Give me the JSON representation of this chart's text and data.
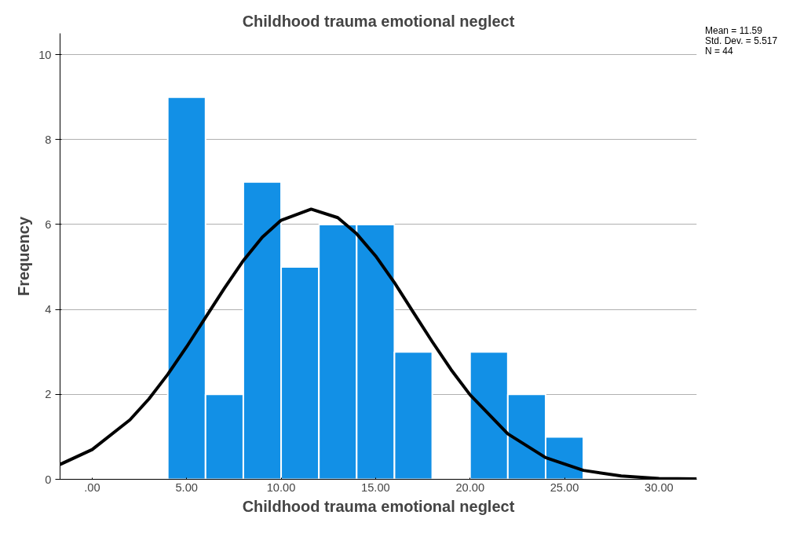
{
  "chart_data": {
    "type": "histogram",
    "title": "Childhood trauma emotional neglect",
    "xlabel": "Childhood trauma emotional neglect",
    "ylabel": "Frequency",
    "bins": [
      4,
      6,
      8,
      10,
      12,
      14,
      16,
      18,
      20,
      22,
      24,
      26
    ],
    "values": [
      9,
      2,
      7,
      5,
      6,
      6,
      3,
      0,
      3,
      2,
      1
    ],
    "color": "#1290e6",
    "series": [
      {
        "type": "line",
        "color": "#000000",
        "x": [
          -1.7,
          0,
          2,
          3,
          4,
          5,
          6,
          7,
          8,
          9,
          10,
          11.59,
          13,
          14,
          15,
          16,
          17,
          18,
          19,
          20,
          22,
          24,
          26,
          28,
          30,
          32
        ],
        "values": [
          0.35,
          0.7,
          1.4,
          1.89,
          2.47,
          3.12,
          3.81,
          4.5,
          5.15,
          5.7,
          6.1,
          6.36,
          6.16,
          5.78,
          5.26,
          4.63,
          3.93,
          3.24,
          2.58,
          1.99,
          1.07,
          0.51,
          0.21,
          0.08,
          0.02,
          0.01
        ]
      }
    ],
    "xlim": [
      -1.7,
      32
    ],
    "ylim": [
      0,
      10.5
    ],
    "xticks": [
      {
        "value": 0,
        "label": ".00"
      },
      {
        "value": 5,
        "label": "5.00"
      },
      {
        "value": 10,
        "label": "10.00"
      },
      {
        "value": 15,
        "label": "15.00"
      },
      {
        "value": 20,
        "label": "20.00"
      },
      {
        "value": 25,
        "label": "25.00"
      },
      {
        "value": 30,
        "label": "30.00"
      }
    ],
    "yticks": [
      0,
      2,
      4,
      6,
      8,
      10
    ],
    "grid": "y",
    "annotations": [
      "Mean = 11.59",
      "Std. Dev. = 5.517",
      "N = 44"
    ]
  }
}
